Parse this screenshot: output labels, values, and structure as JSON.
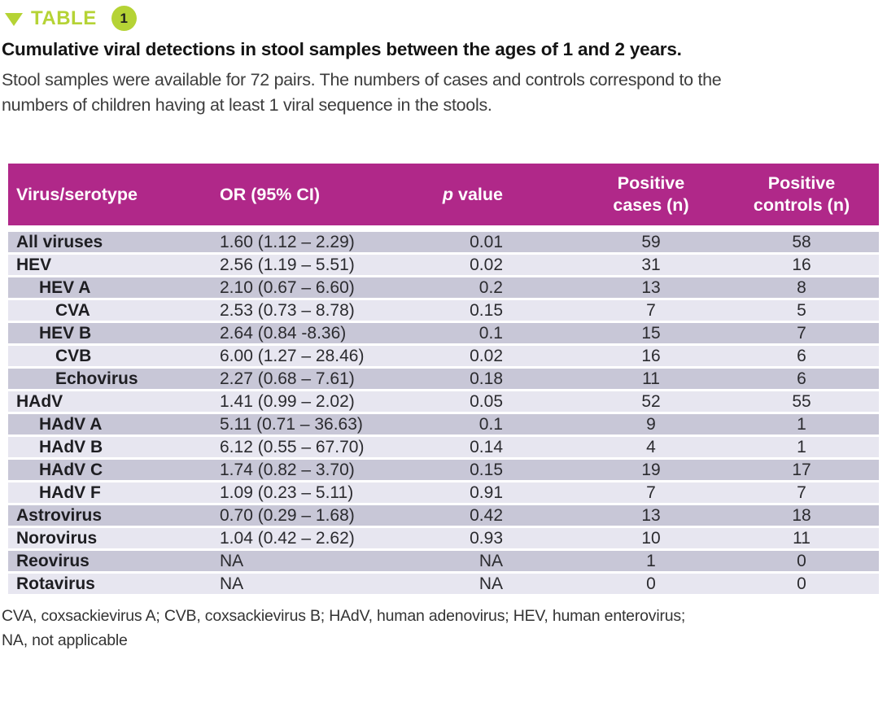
{
  "colors": {
    "header_bg": "#b02889",
    "accent_lime": "#b5d335",
    "row_dark": "#c8c7d7",
    "row_light": "#e7e6f0"
  },
  "table_label": {
    "word": "TABLE",
    "number": "1"
  },
  "title": "Cumulative viral detections in stool samples between the ages of 1 and 2 years.",
  "description": {
    "line1": "Stool samples were available for 72 pairs. The numbers of cases and controls correspond to the",
    "line2": "numbers of children having at least 1 viral sequence in the stools."
  },
  "table": {
    "p_header": {
      "italic": "p",
      "rest": " value"
    },
    "columns": [
      {
        "line1": "Virus/serotype",
        "line2": ""
      },
      {
        "line1": "OR (95% CI)",
        "line2": ""
      },
      {
        "line1": "p value",
        "line2": ""
      },
      {
        "line1": "Positive",
        "line2": "cases (n)"
      },
      {
        "line1": "Positive",
        "line2": "controls (n)"
      }
    ],
    "rows": [
      {
        "virus": "All viruses",
        "indent": 0,
        "or": "1.60 (1.12 – 2.29)",
        "p": "0.01",
        "cases": "59",
        "controls": "58"
      },
      {
        "virus": "HEV",
        "indent": 0,
        "or": "2.56 (1.19 – 5.51)",
        "p": "0.02",
        "cases": "31",
        "controls": "16"
      },
      {
        "virus": "HEV A",
        "indent": 1,
        "or": "2.10 (0.67 – 6.60)",
        "p": "0.2",
        "cases": "13",
        "controls": "8"
      },
      {
        "virus": "CVA",
        "indent": 2,
        "or": "2.53 (0.73 – 8.78)",
        "p": "0.15",
        "cases": "7",
        "controls": "5"
      },
      {
        "virus": "HEV B",
        "indent": 1,
        "or": "2.64 (0.84 -8.36)",
        "p": "0.1",
        "cases": "15",
        "controls": "7"
      },
      {
        "virus": "CVB",
        "indent": 2,
        "or": "6.00 (1.27 – 28.46)",
        "p": "0.02",
        "cases": "16",
        "controls": "6"
      },
      {
        "virus": "Echovirus",
        "indent": 2,
        "or": "2.27 (0.68 – 7.61)",
        "p": "0.18",
        "cases": "11",
        "controls": "6"
      },
      {
        "virus": "HAdV",
        "indent": 0,
        "or": "1.41 (0.99 – 2.02)",
        "p": "0.05",
        "cases": "52",
        "controls": "55"
      },
      {
        "virus": "HAdV A",
        "indent": 1,
        "or": "5.11 (0.71 – 36.63)",
        "p": "0.1",
        "cases": "9",
        "controls": "1"
      },
      {
        "virus": "HAdV B",
        "indent": 1,
        "or": "6.12 (0.55 – 67.70)",
        "p": "0.14",
        "cases": "4",
        "controls": "1"
      },
      {
        "virus": "HAdV C",
        "indent": 1,
        "or": "1.74 (0.82 – 3.70)",
        "p": "0.15",
        "cases": "19",
        "controls": "17"
      },
      {
        "virus": "HAdV F",
        "indent": 1,
        "or": "1.09 (0.23 – 5.11)",
        "p": "0.91",
        "cases": "7",
        "controls": "7"
      },
      {
        "virus": "Astrovirus",
        "indent": 0,
        "or": "0.70 (0.29 – 1.68)",
        "p": "0.42",
        "cases": "13",
        "controls": "18"
      },
      {
        "virus": "Norovirus",
        "indent": 0,
        "or": "1.04 (0.42 – 2.62)",
        "p": "0.93",
        "cases": "10",
        "controls": "11"
      },
      {
        "virus": "Reovirus",
        "indent": 0,
        "or": "NA",
        "p": "NA",
        "cases": "1",
        "controls": "0"
      },
      {
        "virus": "Rotavirus",
        "indent": 0,
        "or": "NA",
        "p": "NA",
        "cases": "0",
        "controls": "0"
      }
    ]
  },
  "footnote": {
    "line1": "CVA, coxsackievirus A; CVB, coxsackievirus B; HAdV, human adenovirus; HEV, human enterovirus;",
    "line2": "NA, not applicable"
  }
}
